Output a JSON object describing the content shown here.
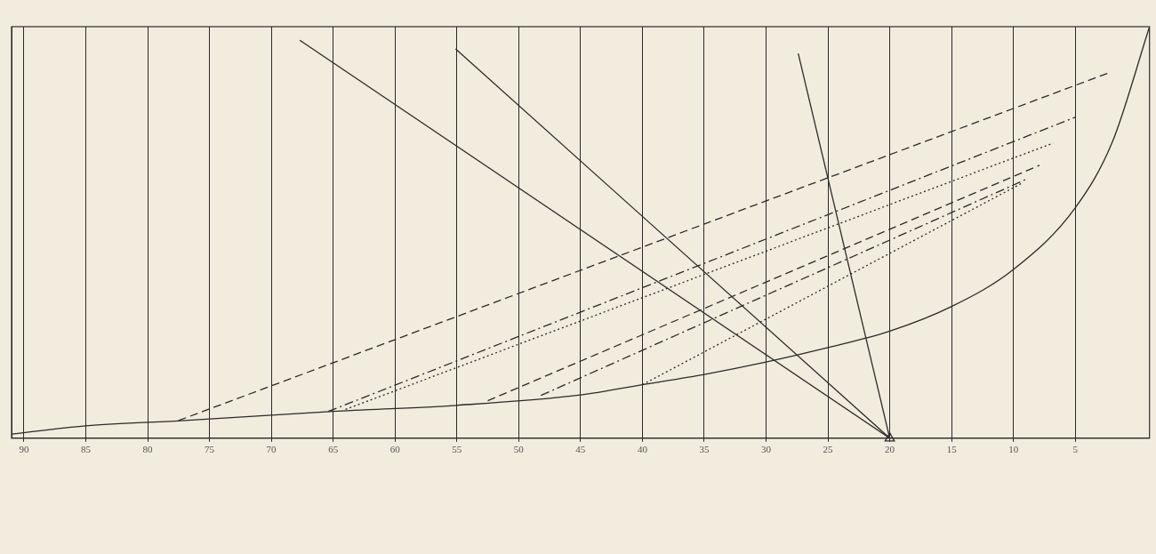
{
  "chart_data": {
    "type": "line",
    "xlim": [
      91,
      -1
    ],
    "xticks": [
      90,
      85,
      80,
      75,
      70,
      65,
      60,
      55,
      50,
      45,
      40,
      35,
      30,
      25,
      20,
      15,
      10,
      5
    ],
    "ylim": [
      0,
      100
    ],
    "tick_labels": "x",
    "grid": true,
    "series": [
      {
        "color": "#2a2a2a",
        "line_style": "solid",
        "x": [
          91,
          85,
          77,
          65,
          55,
          45,
          40,
          35,
          30,
          25,
          20,
          15,
          10,
          5,
          2,
          -1
        ],
        "values": [
          1,
          3,
          4.3,
          6.5,
          8,
          10.5,
          13,
          15.5,
          18.5,
          22,
          26,
          32,
          41,
          56,
          72,
          100
        ]
      },
      {
        "color": "#2a2a2a",
        "line_style": "solid",
        "x": [
          67.7,
          20
        ],
        "values": [
          96.7,
          0
        ]
      },
      {
        "color": "#2a2a2a",
        "line_style": "solid",
        "x": [
          55.1,
          20
        ],
        "values": [
          94.6,
          0
        ]
      },
      {
        "color": "#2a2a2a",
        "line_style": "solid",
        "x": [
          27.4,
          20
        ],
        "values": [
          93.5,
          0
        ]
      },
      {
        "color": "#2a2a2a",
        "line_style": "dashed",
        "x": [
          77.5,
          2.1
        ],
        "values": [
          4.3,
          89
        ]
      },
      {
        "color": "#2a2a2a",
        "line_style": "dashdot",
        "x": [
          65.4,
          5
        ],
        "values": [
          6.5,
          78
        ]
      },
      {
        "color": "#2a2a2a",
        "line_style": "dotted",
        "x": [
          64,
          6.8
        ],
        "values": [
          7,
          71.7
        ]
      },
      {
        "color": "#2a2a2a",
        "line_style": "dashed",
        "x": [
          52.5,
          7.9
        ],
        "values": [
          9.1,
          66.3
        ]
      },
      {
        "color": "#2a2a2a",
        "line_style": "dashdot",
        "x": [
          48.2,
          8.9
        ],
        "values": [
          10.4,
          63
        ]
      },
      {
        "color": "#2a2a2a",
        "line_style": "dotted",
        "x": [
          40,
          9.3
        ],
        "values": [
          13,
          62
        ]
      },
      {
        "color": "#2a2a2a",
        "line_style": "none",
        "marker": "triangle",
        "x": [
          20
        ],
        "values": [
          0
        ]
      }
    ]
  }
}
